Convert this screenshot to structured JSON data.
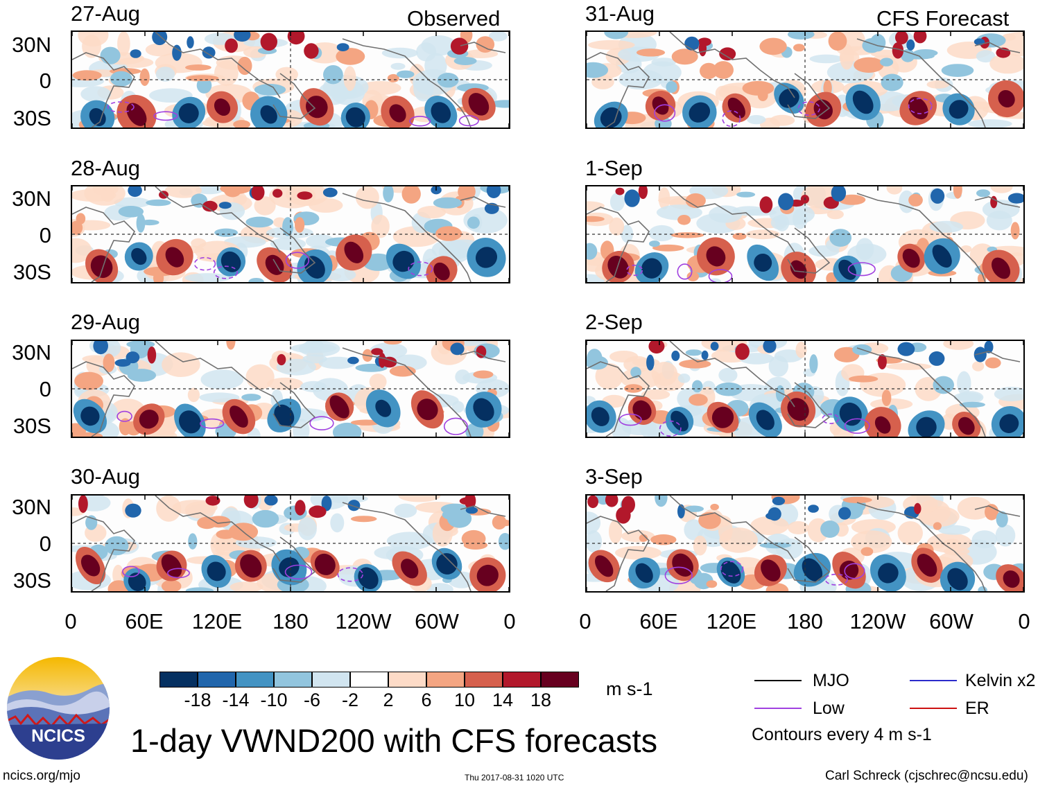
{
  "header": {
    "observed_label": "Observed",
    "forecast_label": "CFS Forecast"
  },
  "panels": [
    {
      "date": "27-Aug",
      "column": "observed"
    },
    {
      "date": "28-Aug",
      "column": "observed"
    },
    {
      "date": "29-Aug",
      "column": "observed"
    },
    {
      "date": "30-Aug",
      "column": "observed"
    },
    {
      "date": "31-Aug",
      "column": "forecast"
    },
    {
      "date": "1-Sep",
      "column": "forecast"
    },
    {
      "date": "2-Sep",
      "column": "forecast"
    },
    {
      "date": "3-Sep",
      "column": "forecast"
    }
  ],
  "axes": {
    "lat_labels": [
      "30N",
      "0",
      "30S"
    ],
    "lon_labels": [
      "0",
      "60E",
      "120E",
      "180",
      "120W",
      "60W",
      "0"
    ]
  },
  "colorbar": {
    "unit": "m s-1",
    "ticks": [
      "-18",
      "-14",
      "-10",
      "-6",
      "-2",
      "2",
      "6",
      "10",
      "14",
      "18"
    ],
    "colors": [
      "#053061",
      "#2166ac",
      "#4393c3",
      "#92c5de",
      "#d1e5f0",
      "#ffffff",
      "#fddbc7",
      "#f4a582",
      "#d6604d",
      "#b2182b",
      "#67001f"
    ]
  },
  "legend": {
    "items": [
      {
        "label": "MJO",
        "color": "#000000"
      },
      {
        "label": "Kelvin x2",
        "color": "#2b2bcc"
      },
      {
        "label": "Low",
        "color": "#a040e0"
      },
      {
        "label": "ER",
        "color": "#cc1111"
      }
    ],
    "contour_note": "Contours every 4 m s-1"
  },
  "footer": {
    "title": "1-day VWND200 with CFS forecasts",
    "logo_text": "NCICS",
    "website": "ncics.org/mjo",
    "timestamp": "Thu 2017-08-31 1020 UTC",
    "credit": "Carl Schreck (cjschrec@ncsu.edu)"
  }
}
